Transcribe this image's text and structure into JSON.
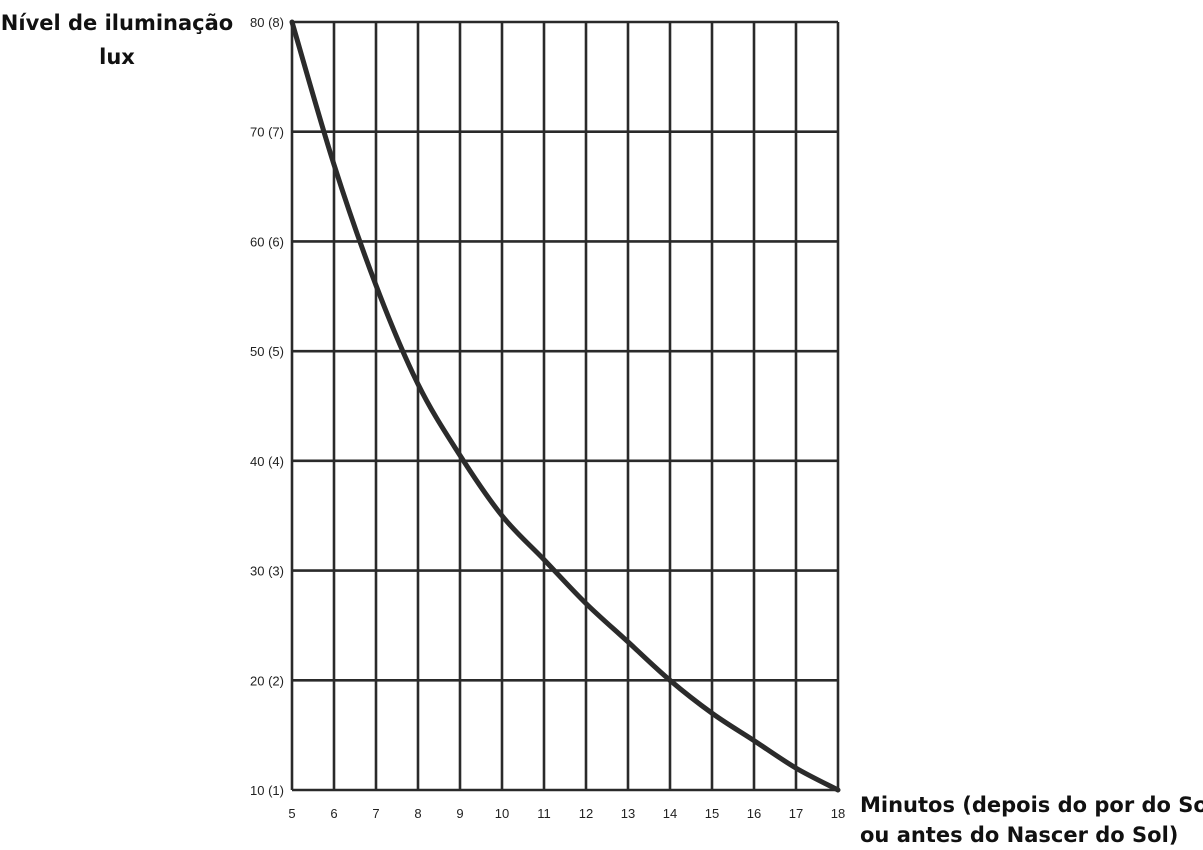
{
  "chart_data": {
    "type": "line",
    "ylabel_lines": [
      "Nível de iluminação",
      "lux"
    ],
    "xlabel_lines": [
      "Minutos (depois do por do Sol",
      "ou antes do Nascer do Sol)"
    ],
    "x_ticks": [
      "5",
      "6",
      "7",
      "8",
      "9",
      "10",
      "11",
      "12",
      "13",
      "14",
      "15",
      "16",
      "17",
      "18"
    ],
    "y_ticks": [
      "10 (1)",
      "20 (2)",
      "30 (3)",
      "40 (4)",
      "50 (5)",
      "60 (6)",
      "70 (7)",
      "80 (8)"
    ],
    "xlim": [
      5,
      18
    ],
    "ylim": [
      10,
      80
    ],
    "grid": true,
    "series": [
      {
        "x": [
          5,
          6,
          7,
          8,
          9,
          10,
          11,
          12,
          13,
          14,
          15,
          16,
          17,
          18
        ],
        "y": [
          80,
          67,
          56,
          47,
          40.5,
          35,
          31,
          27,
          23.5,
          20,
          17,
          14.5,
          12,
          10
        ]
      }
    ]
  }
}
